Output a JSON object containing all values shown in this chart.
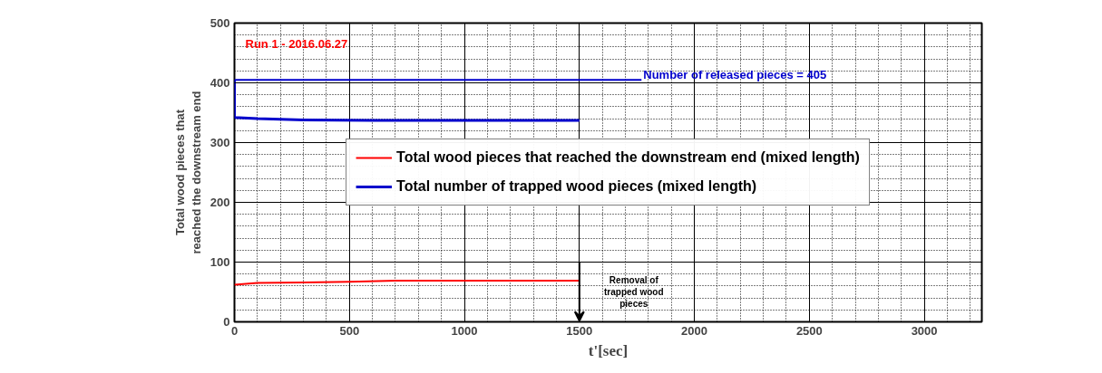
{
  "chart_data": {
    "type": "line",
    "xlabel": "t'[sec]",
    "ylabel": "Total wood pieces that\nreached the downstream end",
    "xlim": [
      0,
      3250
    ],
    "xticks": [
      0,
      500,
      1000,
      1500,
      2000,
      2500,
      3000
    ],
    "ylim": [
      0,
      500
    ],
    "yticks": [
      0,
      100,
      200,
      300,
      400,
      500
    ],
    "grid": true,
    "legend": "center",
    "line_style": "solid",
    "marker": "none",
    "series": [
      {
        "name": "Total wood pieces that reached the downstream end (mixed length)",
        "color": "#ff0000",
        "x": [
          0,
          100,
          300,
          500,
          700,
          1500
        ],
        "values": [
          62,
          65,
          66,
          67,
          69,
          69
        ]
      },
      {
        "name": "Total number of trapped wood pieces (mixed length)",
        "color": "#0000cc",
        "x": [
          0,
          0,
          100,
          300,
          600,
          1500
        ],
        "values": [
          405,
          342,
          340,
          338,
          337,
          337
        ]
      },
      {
        "color": "#0000cc",
        "x": [
          0,
          1770
        ],
        "values": [
          405,
          405
        ]
      }
    ],
    "annotations": [
      "Run 1 - 2016.06.27",
      {
        "text": "Number of released pieces = 405",
        "x": 1770,
        "y": 405
      },
      "Removal of trapped wood pieces"
    ]
  }
}
